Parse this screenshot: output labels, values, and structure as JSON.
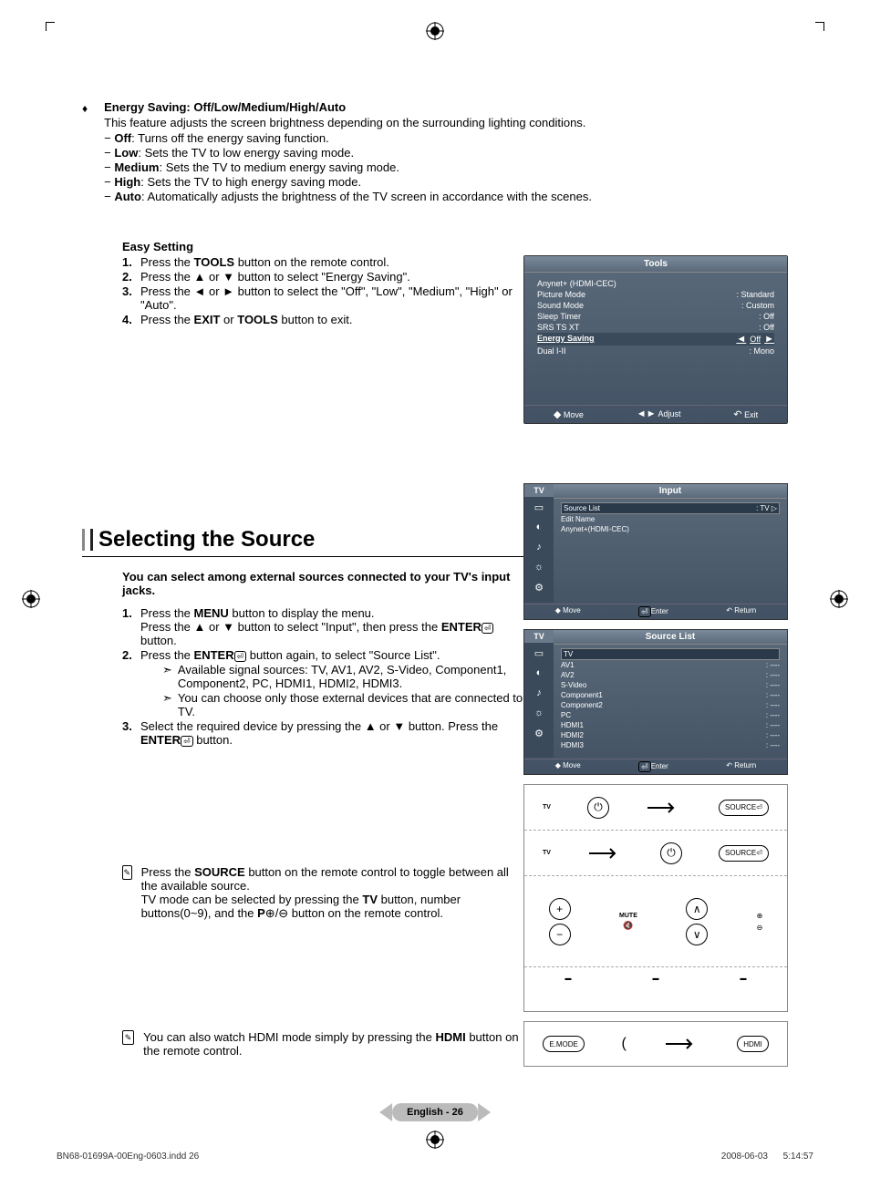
{
  "energy_saving": {
    "title": "Energy Saving:  Off/Low/Medium/High/Auto",
    "desc": "This feature adjusts the screen brightness depending on the surrounding lighting conditions.",
    "modes": [
      {
        "name": "Off",
        "text": ": Turns off the energy saving function."
      },
      {
        "name": "Low",
        "text": ": Sets the TV to low energy saving mode."
      },
      {
        "name": "Medium",
        "text": ": Sets the TV to medium energy saving mode."
      },
      {
        "name": "High",
        "text": ": Sets the TV to high energy saving mode."
      },
      {
        "name": "Auto",
        "text": ": Automatically adjusts the brightness of the TV screen in accordance with the scenes."
      }
    ]
  },
  "easy_setting": {
    "title": "Easy Setting",
    "steps": [
      "Press the <b>TOOLS</b> button on the remote control.",
      "Press the ▲ or ▼ button to select \"Energy Saving\".",
      "Press the ◄ or ► button to select the \"Off\", \"Low\", \"Medium\", \"High\" or \"Auto\".",
      "Press the <b>EXIT</b> or <b>TOOLS</b> button to exit."
    ]
  },
  "osd_tools": {
    "title": "Tools",
    "rows": [
      {
        "label": "Anynet+ (HDMI-CEC)",
        "value": ""
      },
      {
        "label": "Picture Mode",
        "value": ": Standard"
      },
      {
        "label": "Sound Mode",
        "value": ": Custom"
      },
      {
        "label": "Sleep Timer",
        "value": ": Off"
      },
      {
        "label": "SRS TS XT",
        "value": ": Off"
      },
      {
        "label": "Energy Saving",
        "value": "Off",
        "selected": true
      },
      {
        "label": "Dual I-II",
        "value": ": Mono"
      }
    ],
    "footer": {
      "move": "Move",
      "adjust": "Adjust",
      "exit": "Exit"
    }
  },
  "selecting_source": {
    "title": "Selecting the Source",
    "intro": "You can select among external sources connected to your TV's input jacks.",
    "steps": [
      {
        "text": "Press the <b>MENU</b> button to display the menu.<br>Press the ▲ or ▼ button to select \"Input\", then press the <b>ENTER</b><span class='enter-icon'>⏎</span> button."
      },
      {
        "text": "Press the <b>ENTER</b><span class='enter-icon'>⏎</span> button again, to select \"Source List\".",
        "subs": [
          "Available signal sources:  TV, AV1, AV2, S-Video, Component1, Component2, PC, HDMI1, HDMI2, HDMI3.",
          "You can choose only those external devices that are connected to the TV."
        ]
      },
      {
        "text": "Select the required device by pressing the ▲ or ▼ button. Press the <b>ENTER</b><span class='enter-icon'>⏎</span> button."
      }
    ],
    "note1": "Press the <b>SOURCE</b> button on the remote control to toggle between all the available source.<br>TV mode can be selected by pressing the <b>TV</b> button, number buttons(0~9), and the <b>P</b>⊕/⊖ button on the remote control.",
    "note2": "You can also watch HDMI mode simply by pressing the <b>HDMI</b> button on the remote control."
  },
  "osd_input": {
    "tab": "TV",
    "title": "Input",
    "rows": [
      {
        "label": "Source List",
        "value": ": TV",
        "hl": true
      },
      {
        "label": "Edit Name",
        "value": ""
      },
      {
        "label": "Anynet+(HDMI-CEC)",
        "value": ""
      }
    ],
    "footer": {
      "move": "Move",
      "enter": "Enter",
      "return": "Return"
    }
  },
  "osd_sourcelist": {
    "tab": "TV",
    "title": "Source List",
    "rows": [
      {
        "label": "TV",
        "value": "",
        "hl": true
      },
      {
        "label": "AV1",
        "value": ": ----"
      },
      {
        "label": "AV2",
        "value": ": ----"
      },
      {
        "label": "S-Video",
        "value": ": ----"
      },
      {
        "label": "Component1",
        "value": ": ----"
      },
      {
        "label": "Component2",
        "value": ": ----"
      },
      {
        "label": "PC",
        "value": ": ----"
      },
      {
        "label": "HDMI1",
        "value": ": ----"
      },
      {
        "label": "HDMI2",
        "value": ": ----"
      },
      {
        "label": "HDMI3",
        "value": ": ----"
      }
    ],
    "footer": {
      "move": "Move",
      "enter": "Enter",
      "return": "Return"
    }
  },
  "remote": {
    "tv": "TV",
    "source": "SOURCE",
    "mute": "MUTE",
    "emode": "E.MODE",
    "hdmi": "HDMI"
  },
  "page_footer": "English - 26",
  "doc_footer": {
    "file": "BN68-01699A-00Eng-0603.indd   26",
    "date": "2008-06-03      5:14:57"
  }
}
